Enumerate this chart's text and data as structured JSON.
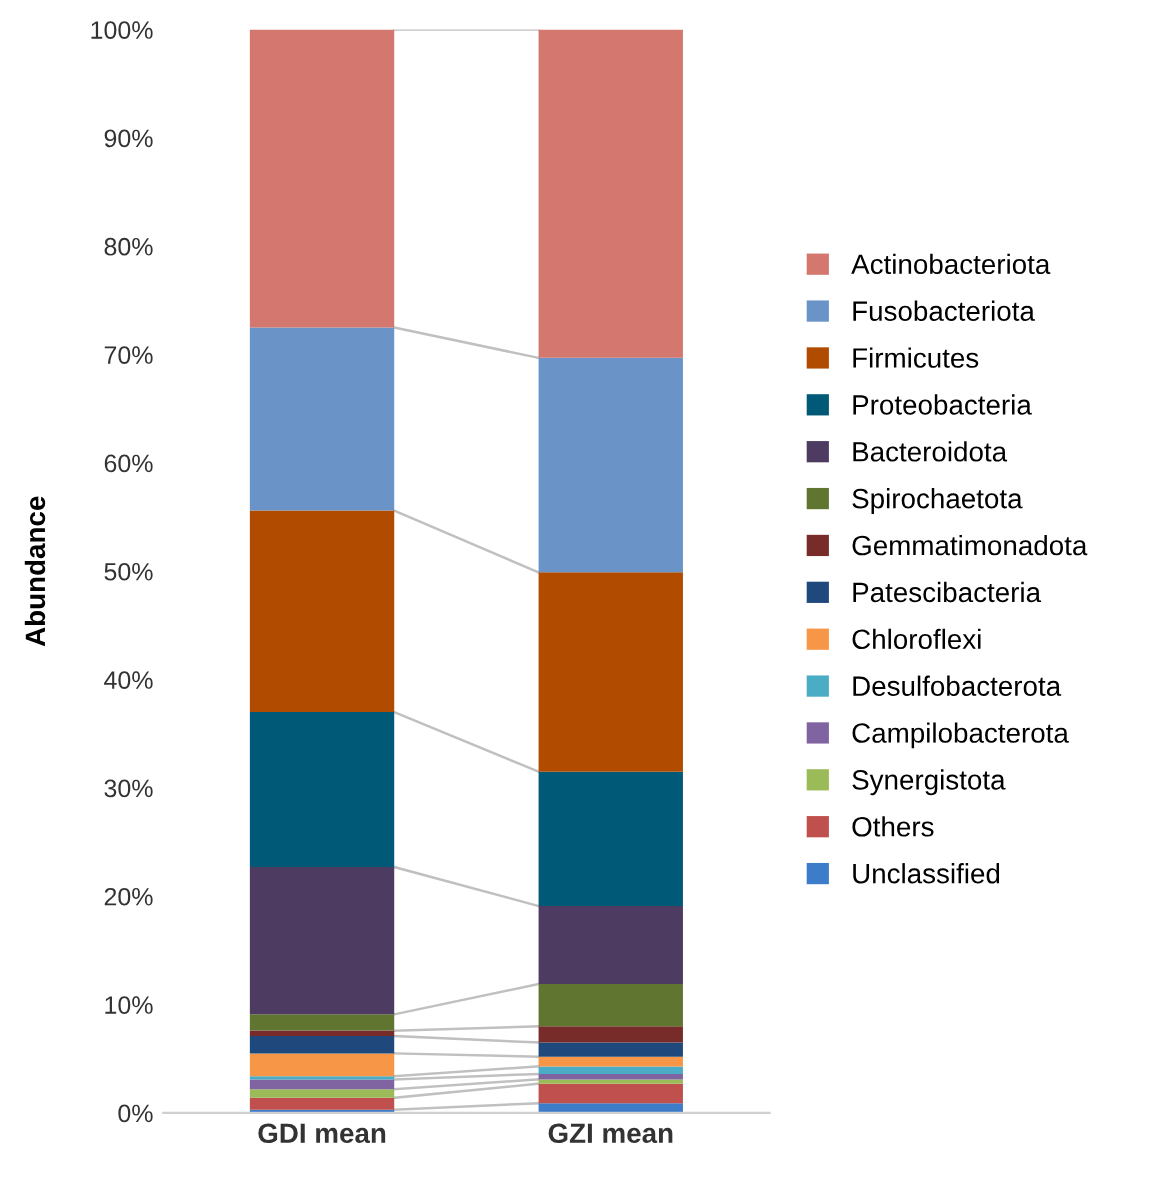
{
  "chart_data": {
    "type": "bar",
    "stacked": true,
    "ylabel": "Abundance",
    "categories": [
      "GDI mean",
      "GZI mean"
    ],
    "ylim": [
      0,
      100
    ],
    "yticks": [
      {
        "value": 0,
        "label": "0%"
      },
      {
        "value": 10,
        "label": "10%"
      },
      {
        "value": 20,
        "label": "20%"
      },
      {
        "value": 30,
        "label": "30%"
      },
      {
        "value": 40,
        "label": "40%"
      },
      {
        "value": 50,
        "label": "50%"
      },
      {
        "value": 60,
        "label": "60%"
      },
      {
        "value": 70,
        "label": "70%"
      },
      {
        "value": 80,
        "label": "80%"
      },
      {
        "value": 90,
        "label": "90%"
      },
      {
        "value": 100,
        "label": "100%"
      }
    ],
    "legend": "right",
    "grid": false,
    "series": [
      {
        "name": "Unclassified",
        "color": "#3d7cc9",
        "values": [
          0.3,
          0.9
        ]
      },
      {
        "name": "Others",
        "color": "#c0504d",
        "values": [
          1.1,
          1.8
        ]
      },
      {
        "name": "Synergistota",
        "color": "#9bbb59",
        "values": [
          0.8,
          0.4
        ]
      },
      {
        "name": "Campilobacterota",
        "color": "#8064a2",
        "values": [
          0.9,
          0.5
        ]
      },
      {
        "name": "Desulfobacterota",
        "color": "#4bacc6",
        "values": [
          0.3,
          0.7
        ]
      },
      {
        "name": "Chloroflexi",
        "color": "#f79646",
        "values": [
          2.1,
          0.9
        ]
      },
      {
        "name": "Patescibacteria",
        "color": "#1f497d",
        "values": [
          1.6,
          1.3
        ]
      },
      {
        "name": "Gemmatimonadota",
        "color": "#772c2a",
        "values": [
          0.5,
          1.5
        ]
      },
      {
        "name": "Spirochaetota",
        "color": "#5f7530",
        "values": [
          1.5,
          3.9
        ]
      },
      {
        "name": "Bacteroidota",
        "color": "#4d3b62",
        "values": [
          13.6,
          7.2
        ]
      },
      {
        "name": "Proteobacteria",
        "color": "#005a77",
        "values": [
          14.3,
          12.4
        ]
      },
      {
        "name": "Firmicutes",
        "color": "#b14b00",
        "values": [
          18.6,
          18.4
        ]
      },
      {
        "name": "Fusobacteriota",
        "color": "#6a94c8",
        "values": [
          16.9,
          19.8
        ]
      },
      {
        "name": "Actinobacteriota",
        "color": "#d3776f",
        "values": [
          27.5,
          30.3
        ]
      }
    ]
  }
}
